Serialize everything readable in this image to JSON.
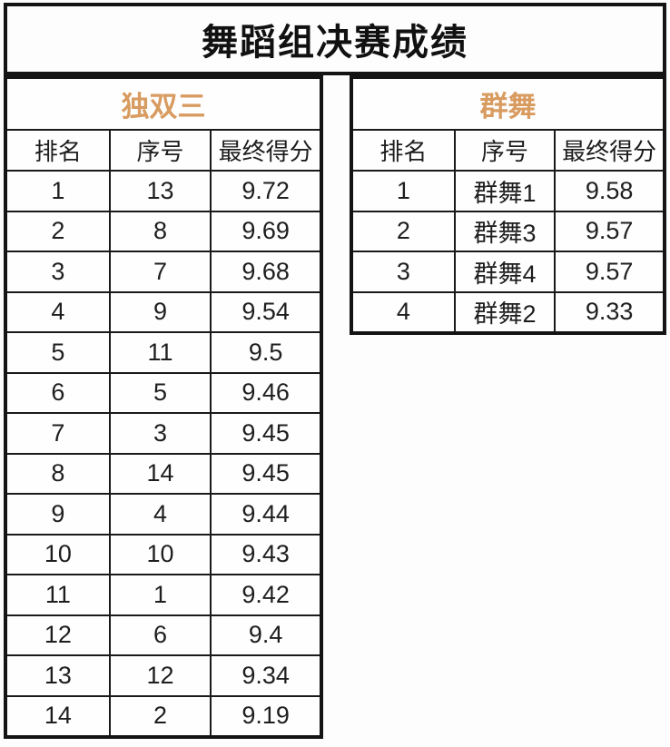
{
  "title": "舞蹈组决赛成绩",
  "accent_color": "#d89b60",
  "tables": [
    {
      "name": "独双三",
      "columns": [
        "排名",
        "序号",
        "最终得分"
      ],
      "rows": [
        [
          "1",
          "13",
          "9.72"
        ],
        [
          "2",
          "8",
          "9.69"
        ],
        [
          "3",
          "7",
          "9.68"
        ],
        [
          "4",
          "9",
          "9.54"
        ],
        [
          "5",
          "11",
          "9.5"
        ],
        [
          "6",
          "5",
          "9.46"
        ],
        [
          "7",
          "3",
          "9.45"
        ],
        [
          "8",
          "14",
          "9.45"
        ],
        [
          "9",
          "4",
          "9.44"
        ],
        [
          "10",
          "10",
          "9.43"
        ],
        [
          "11",
          "1",
          "9.42"
        ],
        [
          "12",
          "6",
          "9.4"
        ],
        [
          "13",
          "12",
          "9.34"
        ],
        [
          "14",
          "2",
          "9.19"
        ]
      ]
    },
    {
      "name": "群舞",
      "columns": [
        "排名",
        "序号",
        "最终得分"
      ],
      "rows": [
        [
          "1",
          "群舞1",
          "9.58"
        ],
        [
          "2",
          "群舞3",
          "9.57"
        ],
        [
          "3",
          "群舞4",
          "9.57"
        ],
        [
          "4",
          "群舞2",
          "9.33"
        ]
      ]
    }
  ]
}
